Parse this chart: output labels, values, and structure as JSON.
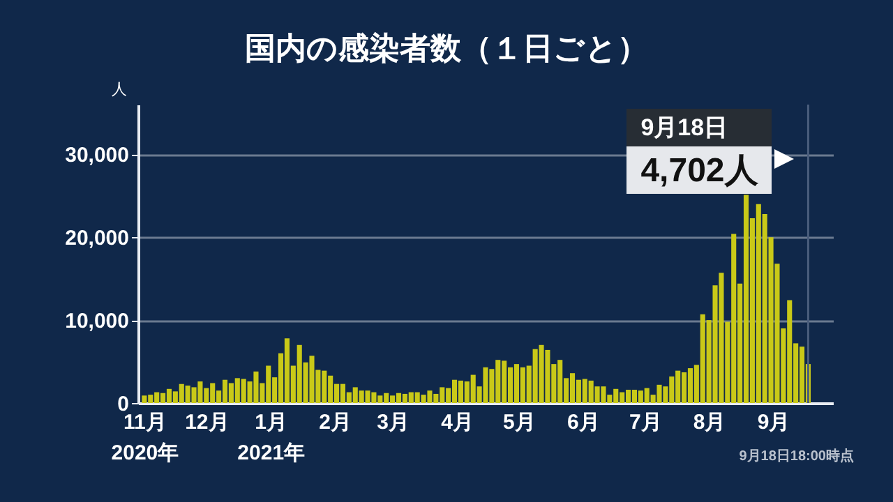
{
  "chart_data": {
    "type": "bar",
    "title": "国内の感染者数（１日ごと）",
    "ylabel": "人",
    "color": "#c9c918",
    "x": [
      "2020-11-01",
      "2020-11-04",
      "2020-11-07",
      "2020-11-10",
      "2020-11-13",
      "2020-11-16",
      "2020-11-19",
      "2020-11-22",
      "2020-11-25",
      "2020-11-28",
      "2020-12-01",
      "2020-12-04",
      "2020-12-07",
      "2020-12-10",
      "2020-12-13",
      "2020-12-16",
      "2020-12-19",
      "2020-12-22",
      "2020-12-25",
      "2020-12-28",
      "2020-12-31",
      "2021-01-03",
      "2021-01-06",
      "2021-01-09",
      "2021-01-12",
      "2021-01-15",
      "2021-01-18",
      "2021-01-21",
      "2021-01-24",
      "2021-01-27",
      "2021-01-30",
      "2021-02-02",
      "2021-02-05",
      "2021-02-08",
      "2021-02-11",
      "2021-02-14",
      "2021-02-17",
      "2021-02-20",
      "2021-02-23",
      "2021-02-26",
      "2021-03-01",
      "2021-03-04",
      "2021-03-07",
      "2021-03-10",
      "2021-03-13",
      "2021-03-16",
      "2021-03-19",
      "2021-03-22",
      "2021-03-25",
      "2021-03-28",
      "2021-03-31",
      "2021-04-03",
      "2021-04-06",
      "2021-04-09",
      "2021-04-12",
      "2021-04-15",
      "2021-04-18",
      "2021-04-21",
      "2021-04-24",
      "2021-04-27",
      "2021-04-30",
      "2021-05-03",
      "2021-05-06",
      "2021-05-09",
      "2021-05-12",
      "2021-05-15",
      "2021-05-18",
      "2021-05-21",
      "2021-05-24",
      "2021-05-27",
      "2021-05-30",
      "2021-06-02",
      "2021-06-05",
      "2021-06-08",
      "2021-06-11",
      "2021-06-14",
      "2021-06-17",
      "2021-06-20",
      "2021-06-23",
      "2021-06-26",
      "2021-06-29",
      "2021-07-02",
      "2021-07-05",
      "2021-07-08",
      "2021-07-11",
      "2021-07-14",
      "2021-07-17",
      "2021-07-20",
      "2021-07-23",
      "2021-07-26",
      "2021-07-29",
      "2021-08-01",
      "2021-08-04",
      "2021-08-07",
      "2021-08-10",
      "2021-08-13",
      "2021-08-16",
      "2021-08-19",
      "2021-08-22",
      "2021-08-25",
      "2021-08-28",
      "2021-08-31",
      "2021-09-03",
      "2021-09-06",
      "2021-09-09",
      "2021-09-12",
      "2021-09-15",
      "2021-09-18"
    ],
    "values": [
      900,
      1000,
      1300,
      1200,
      1700,
      1400,
      2300,
      2100,
      1900,
      2600,
      1800,
      2400,
      1500,
      2800,
      2400,
      3000,
      2900,
      2600,
      3800,
      2400,
      4500,
      3100,
      6000,
      7800,
      4500,
      7000,
      4900,
      5700,
      4000,
      3900,
      3300,
      2300,
      2300,
      1300,
      1900,
      1500,
      1500,
      1300,
      900,
      1200,
      900,
      1200,
      1100,
      1300,
      1300,
      1000,
      1500,
      1100,
      1900,
      1800,
      2800,
      2700,
      2600,
      3400,
      2000,
      4300,
      4100,
      5200,
      5100,
      4300,
      4700,
      4300,
      4500,
      6500,
      7000,
      6400,
      4700,
      5200,
      3000,
      3600,
      2800,
      2900,
      2700,
      2000,
      2000,
      1000,
      1700,
      1300,
      1600,
      1600,
      1500,
      1800,
      1000,
      2200,
      2000,
      3200,
      3900,
      3700,
      4200,
      4600,
      10700,
      10000,
      14200,
      15700,
      9800,
      20400,
      14400,
      25100,
      22300,
      24000,
      22800,
      20000,
      16800,
      9000,
      12400,
      7200,
      6800,
      4702
    ],
    "xlim": [
      "2020-10-29",
      "2021-09-30"
    ],
    "xticks": [
      {
        "value": "2020-11-01",
        "label": "11月\n2020年"
      },
      {
        "value": "2020-12-01",
        "label": "12月"
      },
      {
        "value": "2021-01-01",
        "label": "1月\n2021年"
      },
      {
        "value": "2021-02-01",
        "label": "2月"
      },
      {
        "value": "2021-03-01",
        "label": "3月"
      },
      {
        "value": "2021-04-01",
        "label": "4月"
      },
      {
        "value": "2021-05-01",
        "label": "5月"
      },
      {
        "value": "2021-06-01",
        "label": "6月"
      },
      {
        "value": "2021-07-01",
        "label": "7月"
      },
      {
        "value": "2021-08-01",
        "label": "8月"
      },
      {
        "value": "2021-09-01",
        "label": "9月"
      }
    ],
    "ylim": [
      0,
      36000
    ],
    "yticks": [
      {
        "value": 0,
        "label": "0"
      },
      {
        "value": 10000,
        "label": "10,000"
      },
      {
        "value": 20000,
        "label": "20,000"
      },
      {
        "value": 30000,
        "label": "30,000"
      }
    ],
    "grid": "y",
    "ref_lines": [
      {
        "axis": "x",
        "value": "2021-09-18",
        "color": "#4a5d7c"
      }
    ],
    "annotations": [
      "9月18日",
      "4,702人",
      "9月18日18:00時点"
    ]
  }
}
